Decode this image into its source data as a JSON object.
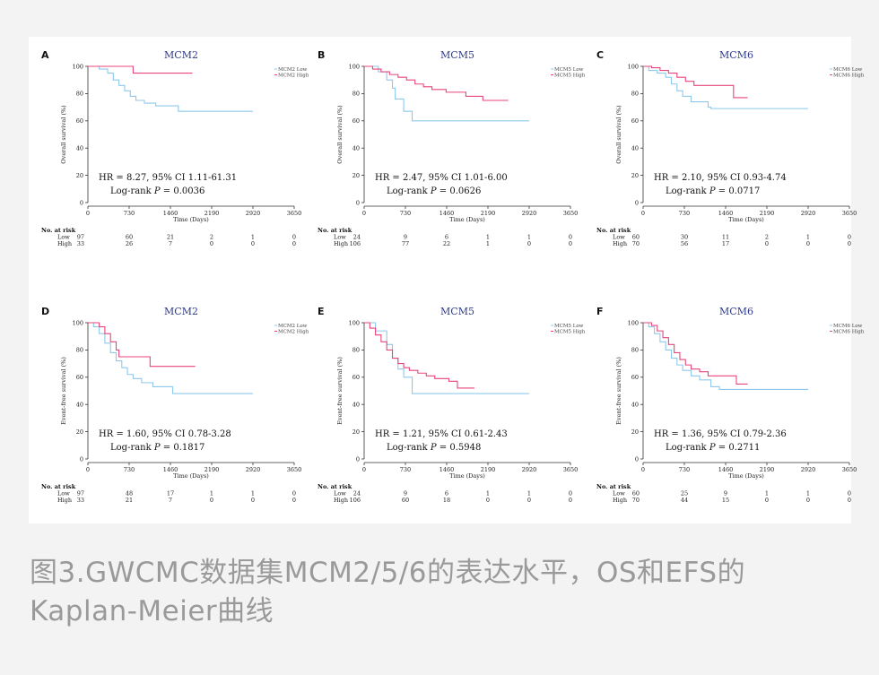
{
  "caption": {
    "line1": "图3.GWCMC数据集MCM2/5/6的表达水平，OS和EFS的",
    "line2": "Kaplan-Meier曲线"
  },
  "colors": {
    "low": "#8ec9ec",
    "high": "#e8457c",
    "title": "#2e3a8c"
  },
  "chart_data": [
    {
      "panel": "A",
      "type": "line",
      "title": "MCM2",
      "xlabel": "Time (Days)",
      "ylabel": "Overall survival (%)",
      "xlim": [
        0,
        3650
      ],
      "ylim": [
        0,
        100
      ],
      "x_ticks": [
        "0",
        "730",
        "1460",
        "2190",
        "2920",
        "3650"
      ],
      "y_ticks": [
        "0",
        "20",
        "40",
        "60",
        "80",
        "100"
      ],
      "legend": [
        "MCM2 Low",
        "MCM2 High"
      ],
      "hr_text": "HR = 8.27, 95% CI 1.11-61.31",
      "logrank_prefix": "Log-rank ",
      "logrank_p_symbol": "P",
      "logrank_value": " = 0.0036",
      "series": [
        {
          "name": "MCM2 Low",
          "points": [
            [
              0,
              100
            ],
            [
              200,
              98
            ],
            [
              350,
              95
            ],
            [
              450,
              90
            ],
            [
              550,
              86
            ],
            [
              650,
              82
            ],
            [
              750,
              78
            ],
            [
              850,
              75
            ],
            [
              1000,
              73
            ],
            [
              1200,
              71
            ],
            [
              1600,
              67
            ],
            [
              2920,
              67
            ]
          ]
        },
        {
          "name": "MCM2 High",
          "points": [
            [
              0,
              100
            ],
            [
              800,
              100
            ],
            [
              800,
              95
            ],
            [
              1850,
              95
            ]
          ]
        }
      ],
      "risk_table": {
        "header": "No. at risk",
        "rows": [
          {
            "label": "Low",
            "n": "97",
            "values": [
              "60",
              "21",
              "2",
              "1",
              "0"
            ]
          },
          {
            "label": "High",
            "n": "33",
            "values": [
              "26",
              "7",
              "0",
              "0",
              "0"
            ]
          }
        ]
      }
    },
    {
      "panel": "B",
      "type": "line",
      "title": "MCM5",
      "xlabel": "Time (Days)",
      "ylabel": "Overall survival (%)",
      "xlim": [
        0,
        3650
      ],
      "ylim": [
        0,
        100
      ],
      "x_ticks": [
        "0",
        "730",
        "1460",
        "2190",
        "2920",
        "3650"
      ],
      "y_ticks": [
        "0",
        "20",
        "40",
        "60",
        "80",
        "100"
      ],
      "legend": [
        "MCM5 Low",
        "MCM5 High"
      ],
      "hr_text": "HR = 2.47, 95% CI 1.01-6.00",
      "logrank_prefix": "Log-rank ",
      "logrank_p_symbol": "P",
      "logrank_value": " = 0.0626",
      "series": [
        {
          "name": "MCM5 Low",
          "points": [
            [
              0,
              100
            ],
            [
              250,
              96
            ],
            [
              400,
              90
            ],
            [
              500,
              84
            ],
            [
              550,
              76
            ],
            [
              700,
              67
            ],
            [
              850,
              60
            ],
            [
              2920,
              60
            ]
          ]
        },
        {
          "name": "MCM5 High",
          "points": [
            [
              0,
              100
            ],
            [
              150,
              98
            ],
            [
              300,
              96
            ],
            [
              450,
              94
            ],
            [
              600,
              92
            ],
            [
              750,
              90
            ],
            [
              900,
              87
            ],
            [
              1050,
              85
            ],
            [
              1200,
              83
            ],
            [
              1450,
              81
            ],
            [
              1800,
              78
            ],
            [
              2100,
              75
            ],
            [
              2550,
              75
            ]
          ]
        }
      ],
      "risk_table": {
        "header": "No. at risk",
        "rows": [
          {
            "label": "Low",
            "n": "24",
            "values": [
              "9",
              "6",
              "1",
              "1",
              "0"
            ]
          },
          {
            "label": "High",
            "n": "106",
            "values": [
              "77",
              "22",
              "1",
              "0",
              "0"
            ]
          }
        ]
      }
    },
    {
      "panel": "C",
      "type": "line",
      "title": "MCM6",
      "xlabel": "Time (Days)",
      "ylabel": "Overall survival (%)",
      "xlim": [
        0,
        3650
      ],
      "ylim": [
        0,
        100
      ],
      "x_ticks": [
        "0",
        "730",
        "1460",
        "2190",
        "2920",
        "3650"
      ],
      "y_ticks": [
        "0",
        "20",
        "40",
        "60",
        "80",
        "100"
      ],
      "legend": [
        "MCM6 Low",
        "MCM6 High"
      ],
      "hr_text": "HR = 2.10, 95% CI 0.93-4.74",
      "logrank_prefix": "Log-rank ",
      "logrank_p_symbol": "P",
      "logrank_value": " = 0.0717",
      "series": [
        {
          "name": "MCM6 Low",
          "points": [
            [
              0,
              100
            ],
            [
              100,
              97
            ],
            [
              250,
              95
            ],
            [
              400,
              92
            ],
            [
              500,
              87
            ],
            [
              600,
              82
            ],
            [
              700,
              78
            ],
            [
              850,
              74
            ],
            [
              1150,
              70
            ],
            [
              1200,
              69
            ],
            [
              2920,
              69
            ]
          ]
        },
        {
          "name": "MCM6 High",
          "points": [
            [
              0,
              100
            ],
            [
              150,
              99
            ],
            [
              300,
              97
            ],
            [
              450,
              95
            ],
            [
              600,
              92
            ],
            [
              750,
              89
            ],
            [
              900,
              86
            ],
            [
              1500,
              86
            ],
            [
              1600,
              77
            ],
            [
              1850,
              77
            ]
          ]
        }
      ],
      "risk_table": {
        "header": "No. at risk",
        "rows": [
          {
            "label": "Low",
            "n": "60",
            "values": [
              "30",
              "11",
              "2",
              "1",
              "0"
            ]
          },
          {
            "label": "High",
            "n": "70",
            "values": [
              "56",
              "17",
              "0",
              "0",
              "0"
            ]
          }
        ]
      }
    },
    {
      "panel": "D",
      "type": "line",
      "title": "MCM2",
      "xlabel": "Time (Days)",
      "ylabel": "Event-free survival (%)",
      "xlim": [
        0,
        3650
      ],
      "ylim": [
        0,
        100
      ],
      "x_ticks": [
        "0",
        "730",
        "1460",
        "2190",
        "2920",
        "3650"
      ],
      "y_ticks": [
        "0",
        "20",
        "40",
        "60",
        "80",
        "100"
      ],
      "legend": [
        "MCM2 Low",
        "MCM2 High"
      ],
      "hr_text": "HR = 1.60, 95% CI 0.78-3.28",
      "logrank_prefix": "Log-rank ",
      "logrank_p_symbol": "P",
      "logrank_value": " = 0.1817",
      "series": [
        {
          "name": "MCM2 Low",
          "points": [
            [
              0,
              100
            ],
            [
              100,
              97
            ],
            [
              200,
              92
            ],
            [
              300,
              85
            ],
            [
              400,
              78
            ],
            [
              500,
              72
            ],
            [
              600,
              67
            ],
            [
              700,
              62
            ],
            [
              800,
              59
            ],
            [
              950,
              56
            ],
            [
              1150,
              53
            ],
            [
              1500,
              48
            ],
            [
              2920,
              48
            ]
          ]
        },
        {
          "name": "MCM2 High",
          "points": [
            [
              0,
              100
            ],
            [
              200,
              97
            ],
            [
              300,
              92
            ],
            [
              400,
              86
            ],
            [
              500,
              80
            ],
            [
              550,
              75
            ],
            [
              1050,
              75
            ],
            [
              1100,
              68
            ],
            [
              1900,
              68
            ]
          ]
        }
      ],
      "risk_table": {
        "header": "No. at risk",
        "rows": [
          {
            "label": "Low",
            "n": "97",
            "values": [
              "48",
              "17",
              "1",
              "1",
              "0"
            ]
          },
          {
            "label": "High",
            "n": "33",
            "values": [
              "21",
              "7",
              "0",
              "0",
              "0"
            ]
          }
        ]
      }
    },
    {
      "panel": "E",
      "type": "line",
      "title": "MCM5",
      "xlabel": "Time (Days)",
      "ylabel": "Event-free survival (%)",
      "xlim": [
        0,
        3650
      ],
      "ylim": [
        0,
        100
      ],
      "x_ticks": [
        "0",
        "730",
        "1460",
        "2190",
        "2920",
        "3650"
      ],
      "y_ticks": [
        "0",
        "20",
        "40",
        "60",
        "80",
        "100"
      ],
      "legend": [
        "MCM5 Low",
        "MCM5 High"
      ],
      "hr_text": "HR = 1.21, 95% CI 0.61-2.43",
      "logrank_prefix": "Log-rank ",
      "logrank_p_symbol": "P",
      "logrank_value": " = 0.5948",
      "series": [
        {
          "name": "MCM5 Low",
          "points": [
            [
              0,
              100
            ],
            [
              200,
              94
            ],
            [
              400,
              84
            ],
            [
              500,
              74
            ],
            [
              600,
              66
            ],
            [
              700,
              60
            ],
            [
              850,
              50
            ],
            [
              850,
              48
            ],
            [
              2920,
              48
            ]
          ]
        },
        {
          "name": "MCM5 High",
          "points": [
            [
              0,
              100
            ],
            [
              100,
              96
            ],
            [
              200,
              91
            ],
            [
              300,
              86
            ],
            [
              400,
              80
            ],
            [
              500,
              74
            ],
            [
              600,
              70
            ],
            [
              700,
              67
            ],
            [
              800,
              65
            ],
            [
              950,
              63
            ],
            [
              1100,
              61
            ],
            [
              1250,
              59
            ],
            [
              1500,
              57
            ],
            [
              1650,
              57
            ],
            [
              1650,
              52
            ],
            [
              1950,
              52
            ]
          ]
        }
      ],
      "risk_table": {
        "header": "No. at risk",
        "rows": [
          {
            "label": "Low",
            "n": "24",
            "values": [
              "9",
              "6",
              "1",
              "1",
              "0"
            ]
          },
          {
            "label": "High",
            "n": "106",
            "values": [
              "60",
              "18",
              "0",
              "0",
              "0"
            ]
          }
        ]
      }
    },
    {
      "panel": "F",
      "type": "line",
      "title": "MCM6",
      "xlabel": "Time (Days)",
      "ylabel": "Event-free survival (%)",
      "xlim": [
        0,
        3650
      ],
      "ylim": [
        0,
        100
      ],
      "x_ticks": [
        "0",
        "730",
        "1460",
        "2190",
        "2920",
        "3650"
      ],
      "y_ticks": [
        "0",
        "20",
        "40",
        "60",
        "80",
        "100"
      ],
      "legend": [
        "MCM6 Low",
        "MCM6 High"
      ],
      "hr_text": "HR = 1.36, 95% CI 0.79-2.36",
      "logrank_prefix": "Log-rank ",
      "logrank_p_symbol": "P",
      "logrank_value": " = 0.2711",
      "series": [
        {
          "name": "MCM6 Low",
          "points": [
            [
              0,
              100
            ],
            [
              100,
              97
            ],
            [
              200,
              92
            ],
            [
              300,
              86
            ],
            [
              400,
              80
            ],
            [
              500,
              74
            ],
            [
              600,
              69
            ],
            [
              700,
              65
            ],
            [
              850,
              61
            ],
            [
              1000,
              58
            ],
            [
              1200,
              53
            ],
            [
              1350,
              51
            ],
            [
              2920,
              51
            ]
          ]
        },
        {
          "name": "MCM6 High",
          "points": [
            [
              0,
              100
            ],
            [
              150,
              98
            ],
            [
              250,
              94
            ],
            [
              350,
              89
            ],
            [
              450,
              84
            ],
            [
              550,
              78
            ],
            [
              650,
              73
            ],
            [
              750,
              69
            ],
            [
              850,
              66
            ],
            [
              1000,
              64
            ],
            [
              1150,
              61
            ],
            [
              1650,
              61
            ],
            [
              1650,
              55
            ],
            [
              1850,
              55
            ]
          ]
        }
      ],
      "risk_table": {
        "header": "No. at risk",
        "rows": [
          {
            "label": "Low",
            "n": "60",
            "values": [
              "25",
              "9",
              "1",
              "1",
              "0"
            ]
          },
          {
            "label": "High",
            "n": "70",
            "values": [
              "44",
              "15",
              "0",
              "0",
              "0"
            ]
          }
        ]
      }
    }
  ]
}
